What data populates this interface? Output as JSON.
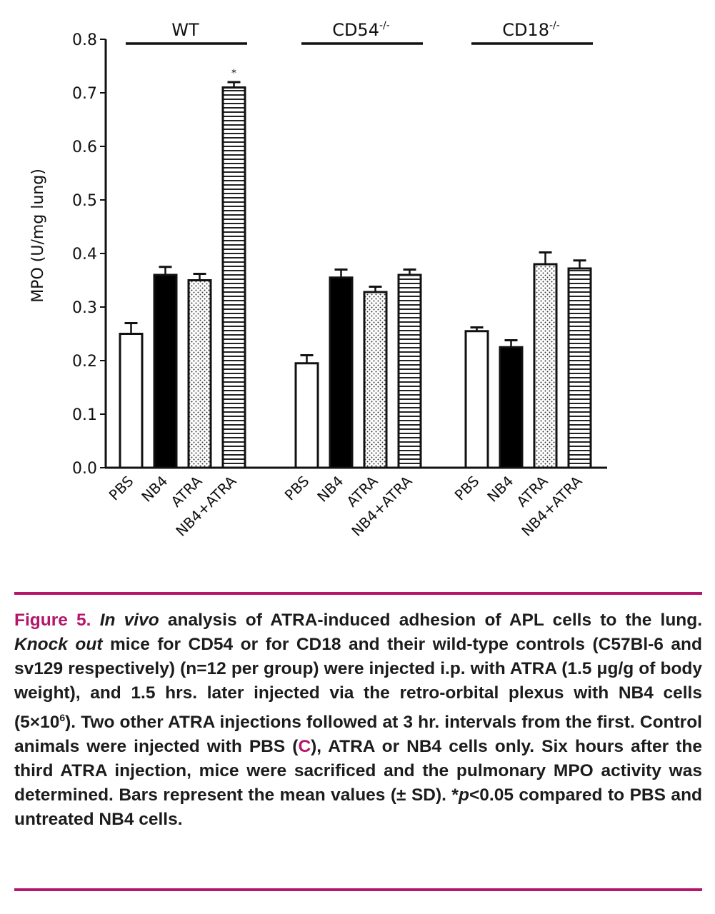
{
  "chart_data": {
    "type": "bar",
    "ylabel": "MPO (U/mg lung)",
    "ylim": [
      0,
      0.8
    ],
    "yticks": [
      "0.0",
      "0.1",
      "0.2",
      "0.3",
      "0.4",
      "0.5",
      "0.6",
      "0.7",
      "0.8"
    ],
    "groups": [
      {
        "name": "WT",
        "sup": "",
        "categories": [
          "PBS",
          "NB4",
          "ATRA",
          "NB4+ATRA"
        ],
        "values": [
          0.25,
          0.36,
          0.35,
          0.71
        ],
        "errors": [
          0.02,
          0.015,
          0.012,
          0.01
        ],
        "annotations": [
          "",
          "",
          "",
          "*"
        ]
      },
      {
        "name": "CD54",
        "sup": "-/-",
        "categories": [
          "PBS",
          "NB4",
          "ATRA",
          "NB4+ATRA"
        ],
        "values": [
          0.195,
          0.355,
          0.328,
          0.36
        ],
        "errors": [
          0.015,
          0.015,
          0.01,
          0.01
        ],
        "annotations": [
          "",
          "",
          "",
          ""
        ]
      },
      {
        "name": "CD18",
        "sup": "-/-",
        "categories": [
          "PBS",
          "NB4",
          "ATRA",
          "NB4+ATRA"
        ],
        "values": [
          0.255,
          0.225,
          0.38,
          0.372
        ],
        "errors": [
          0.007,
          0.013,
          0.022,
          0.015
        ],
        "annotations": [
          "",
          "",
          "",
          ""
        ]
      }
    ],
    "series_styles": [
      {
        "category": "PBS",
        "fill": "white"
      },
      {
        "category": "NB4",
        "fill": "black"
      },
      {
        "category": "ATRA",
        "fill": "dotted"
      },
      {
        "category": "NB4+ATRA",
        "fill": "horizontal-stripes"
      }
    ]
  },
  "caption": {
    "figure_label": "Figure 5.",
    "in_vivo": "In vivo",
    "p1": "analysis of ATRA-induced adhesion of APL cells to the lung.",
    "knock_out": "Knock out",
    "p2": "mice for CD54 or for CD18 and their wild-type controls (C57Bl-6 and sv129 respectively) (n=12 per group) were injected i.p. with ATRA (1.5 μg/g of body weight), and 1.5 hrs. later injected via the retro-orbital plexus with NB4 cells (5×10",
    "exp": "6",
    "p3": "). Two other ATRA injections followed at 3 hr. intervals from the first. Control animals were injected with PBS (",
    "c_letter": "C",
    "p4": "), ATRA or NB4 cells only. Six hours after the third ATRA injection, mice were sacrificed and the pulmonary MPO activity was determined. Bars represent the mean values (± SD). *",
    "p_italic": "p",
    "p5": "<0.05 compared to PBS and untreated NB4 cells."
  },
  "colors": {
    "accent": "#b5156b",
    "ink": "#111111"
  }
}
